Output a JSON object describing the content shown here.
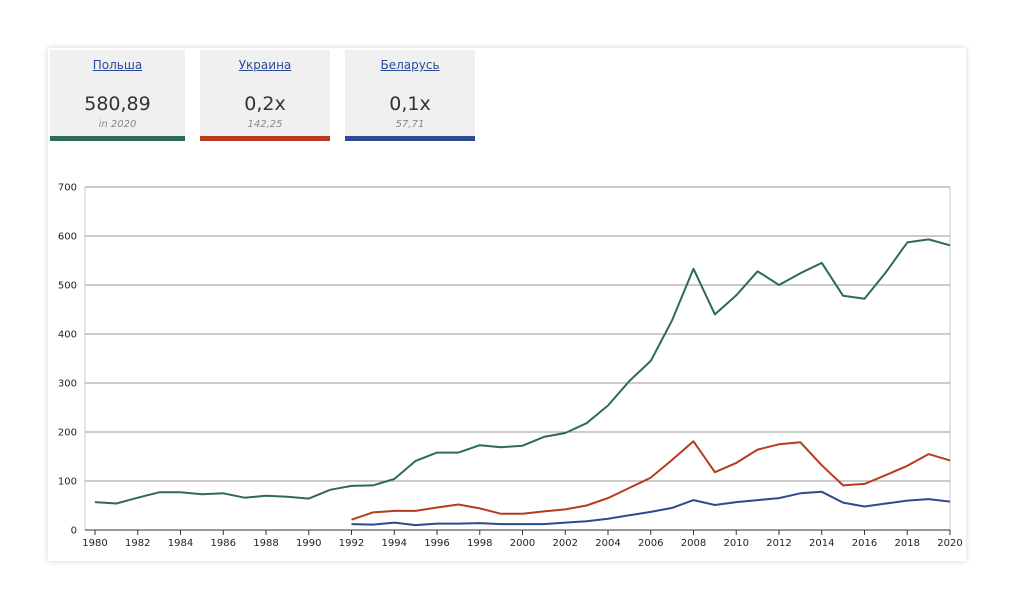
{
  "tiles": [
    {
      "name": "Польша",
      "value": "580,89",
      "sub": "in 2020",
      "color": "#2e6b52"
    },
    {
      "name": "Украина",
      "value": "0,2x",
      "sub": "142,25",
      "color": "#b83a1f"
    },
    {
      "name": "Беларусь",
      "value": "0,1x",
      "sub": "57,71",
      "color": "#2e4a94"
    }
  ],
  "chart_data": {
    "type": "line",
    "ylim": [
      0,
      700
    ],
    "xlim": [
      1980,
      2020
    ],
    "yticks": [
      0,
      100,
      200,
      300,
      400,
      500,
      600,
      700
    ],
    "xticks": [
      1980,
      1982,
      1984,
      1986,
      1988,
      1990,
      1992,
      1994,
      1996,
      1998,
      2000,
      2002,
      2004,
      2006,
      2008,
      2010,
      2012,
      2014,
      2016,
      2018,
      2020
    ],
    "grid": true,
    "series": [
      {
        "name": "Польша",
        "color": "#2e6b52",
        "x": [
          1980,
          1981,
          1982,
          1983,
          1984,
          1985,
          1986,
          1987,
          1988,
          1989,
          1990,
          1991,
          1992,
          1993,
          1994,
          1995,
          1996,
          1997,
          1998,
          1999,
          2000,
          2001,
          2002,
          2003,
          2004,
          2005,
          2006,
          2007,
          2008,
          2009,
          2010,
          2011,
          2012,
          2013,
          2014,
          2015,
          2016,
          2017,
          2018,
          2019,
          2020
        ],
        "values": [
          57,
          54,
          66,
          77,
          77,
          73,
          75,
          66,
          70,
          68,
          64,
          82,
          90,
          91,
          104,
          141,
          158,
          158,
          173,
          169,
          172,
          190,
          198,
          218,
          254,
          304,
          345,
          428,
          533,
          440,
          479,
          528,
          500,
          524,
          545,
          478,
          472,
          526,
          587,
          593,
          581
        ]
      },
      {
        "name": "Украина",
        "color": "#b83a1f",
        "x": [
          1992,
          1993,
          1994,
          1995,
          1996,
          1997,
          1998,
          1999,
          2000,
          2001,
          2002,
          2003,
          2004,
          2005,
          2006,
          2007,
          2008,
          2009,
          2010,
          2011,
          2012,
          2013,
          2014,
          2015,
          2016,
          2017,
          2018,
          2019,
          2020
        ],
        "values": [
          21,
          36,
          39,
          39,
          46,
          52,
          44,
          33,
          33,
          38,
          42,
          50,
          65,
          86,
          107,
          143,
          181,
          118,
          137,
          164,
          175,
          179,
          132,
          91,
          94,
          112,
          131,
          155,
          142
        ]
      },
      {
        "name": "Беларусь",
        "color": "#2e4a94",
        "x": [
          1992,
          1993,
          1994,
          1995,
          1996,
          1997,
          1998,
          1999,
          2000,
          2001,
          2002,
          2003,
          2004,
          2005,
          2006,
          2007,
          2008,
          2009,
          2010,
          2011,
          2012,
          2013,
          2014,
          2015,
          2016,
          2017,
          2018,
          2019,
          2020
        ],
        "values": [
          12,
          11,
          15,
          10,
          13,
          13,
          14,
          12,
          12,
          12,
          15,
          18,
          23,
          30,
          37,
          45,
          61,
          51,
          57,
          61,
          65,
          75,
          78,
          56,
          48,
          54,
          60,
          63,
          58
        ]
      }
    ]
  }
}
